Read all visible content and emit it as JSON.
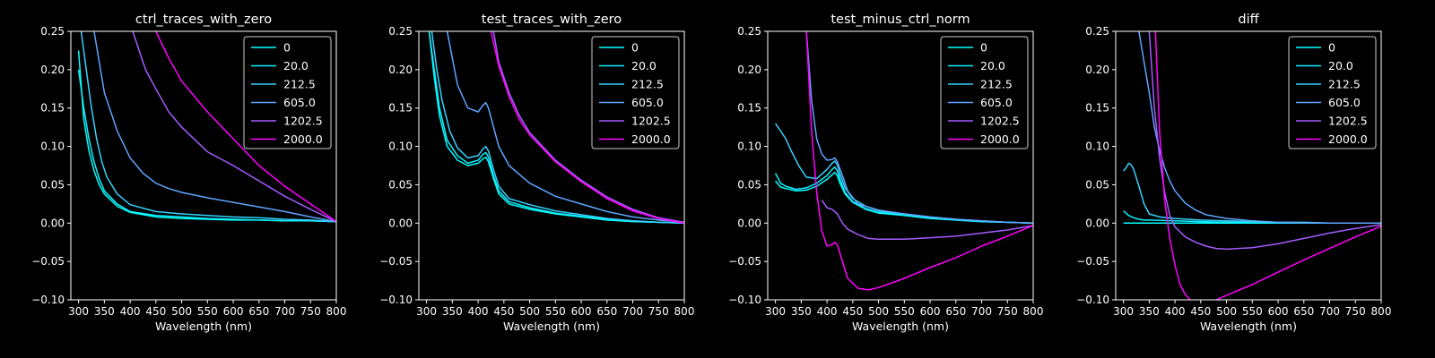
{
  "colors": {
    "background": "#000000",
    "axes": "#ffffff",
    "text": "#ffffff"
  },
  "legend_entries": [
    {
      "label": "0",
      "color": "#00ffff"
    },
    {
      "label": "20.0",
      "color": "#0df2ff"
    },
    {
      "label": "212.5",
      "color": "#37d0ff"
    },
    {
      "label": "605.0",
      "color": "#5ea4ff"
    },
    {
      "label": "1202.5",
      "color": "#a45cff"
    },
    {
      "label": "2000.0",
      "color": "#ff00ff"
    }
  ],
  "chart_data": [
    {
      "type": "line",
      "title": "ctrl_traces_with_zero",
      "xlabel": "Wavelength (nm)",
      "ylabel": "",
      "xlim": [
        285,
        800
      ],
      "ylim": [
        -0.1,
        0.25
      ],
      "xticks": [
        "300",
        "350",
        "400",
        "450",
        "500",
        "550",
        "600",
        "650",
        "700",
        "750",
        "800"
      ],
      "yticks": [
        "−0.10",
        "−0.05",
        "0.00",
        "0.05",
        "0.10",
        "0.15",
        "0.20",
        "0.25"
      ],
      "legend_position": "upper right",
      "grid": false,
      "series": [
        {
          "name": "0",
          "x": [
            300,
            310,
            320,
            330,
            340,
            350,
            375,
            400,
            450,
            500,
            550,
            600,
            650,
            700,
            750,
            800
          ],
          "y": [
            0.225,
            0.135,
            0.095,
            0.068,
            0.05,
            0.038,
            0.022,
            0.014,
            0.008,
            0.006,
            0.005,
            0.004,
            0.004,
            0.003,
            0.003,
            0.002
          ]
        },
        {
          "name": "20.0",
          "x": [
            300,
            310,
            320,
            330,
            340,
            350,
            375,
            400,
            450,
            500,
            550,
            600,
            650,
            700,
            750,
            800
          ],
          "y": [
            0.2,
            0.15,
            0.11,
            0.08,
            0.058,
            0.042,
            0.025,
            0.015,
            0.01,
            0.008,
            0.006,
            0.005,
            0.004,
            0.003,
            0.003,
            0.002
          ]
        },
        {
          "name": "212.5",
          "x": [
            305,
            315,
            325,
            335,
            345,
            355,
            375,
            400,
            450,
            500,
            550,
            600,
            650,
            700,
            750,
            800
          ],
          "y": [
            0.25,
            0.2,
            0.15,
            0.11,
            0.08,
            0.06,
            0.038,
            0.024,
            0.015,
            0.012,
            0.01,
            0.008,
            0.007,
            0.005,
            0.004,
            0.002
          ]
        },
        {
          "name": "605.0",
          "x": [
            330,
            350,
            375,
            400,
            425,
            450,
            475,
            500,
            550,
            600,
            650,
            700,
            750,
            800
          ],
          "y": [
            0.25,
            0.17,
            0.12,
            0.085,
            0.065,
            0.052,
            0.045,
            0.04,
            0.033,
            0.027,
            0.021,
            0.015,
            0.008,
            0.002
          ]
        },
        {
          "name": "1202.5",
          "x": [
            405,
            430,
            450,
            475,
            500,
            550,
            600,
            650,
            700,
            750,
            800
          ],
          "y": [
            0.25,
            0.2,
            0.175,
            0.145,
            0.125,
            0.093,
            0.075,
            0.055,
            0.035,
            0.018,
            0.002
          ]
        },
        {
          "name": "2000.0",
          "x": [
            450,
            475,
            500,
            550,
            600,
            650,
            700,
            750,
            800
          ],
          "y": [
            0.25,
            0.215,
            0.185,
            0.145,
            0.11,
            0.075,
            0.048,
            0.025,
            0.002
          ]
        }
      ]
    },
    {
      "type": "line",
      "title": "test_traces_with_zero",
      "xlabel": "Wavelength (nm)",
      "ylabel": "",
      "xlim": [
        285,
        800
      ],
      "ylim": [
        -0.1,
        0.25
      ],
      "xticks": [
        "300",
        "350",
        "400",
        "450",
        "500",
        "550",
        "600",
        "650",
        "700",
        "750",
        "800"
      ],
      "yticks": [
        "−0.10",
        "−0.05",
        "0.00",
        "0.05",
        "0.10",
        "0.15",
        "0.20",
        "0.25"
      ],
      "legend_position": "upper right",
      "grid": false,
      "series": [
        {
          "name": "0",
          "x": [
            305,
            315,
            325,
            340,
            360,
            380,
            400,
            410,
            415,
            420,
            430,
            440,
            460,
            500,
            550,
            600,
            650,
            700,
            750,
            800
          ],
          "y": [
            0.25,
            0.19,
            0.14,
            0.1,
            0.082,
            0.075,
            0.078,
            0.084,
            0.086,
            0.08,
            0.058,
            0.038,
            0.025,
            0.018,
            0.012,
            0.008,
            0.004,
            0.002,
            0.001,
            0.0
          ]
        },
        {
          "name": "20.0",
          "x": [
            305,
            315,
            325,
            340,
            360,
            380,
            400,
            410,
            415,
            420,
            430,
            440,
            460,
            500,
            550,
            600,
            650,
            700,
            750,
            800
          ],
          "y": [
            0.25,
            0.2,
            0.15,
            0.108,
            0.088,
            0.078,
            0.082,
            0.09,
            0.092,
            0.086,
            0.062,
            0.042,
            0.028,
            0.02,
            0.013,
            0.009,
            0.005,
            0.003,
            0.001,
            0.0
          ]
        },
        {
          "name": "212.5",
          "x": [
            310,
            320,
            330,
            345,
            360,
            380,
            400,
            410,
            415,
            420,
            430,
            440,
            460,
            500,
            550,
            600,
            650,
            700,
            750,
            800
          ],
          "y": [
            0.25,
            0.2,
            0.16,
            0.12,
            0.098,
            0.085,
            0.088,
            0.097,
            0.1,
            0.094,
            0.07,
            0.048,
            0.032,
            0.024,
            0.016,
            0.011,
            0.006,
            0.003,
            0.001,
            0.0
          ]
        },
        {
          "name": "605.0",
          "x": [
            340,
            360,
            380,
            400,
            410,
            415,
            420,
            430,
            440,
            460,
            500,
            550,
            600,
            650,
            700,
            750,
            800
          ],
          "y": [
            0.25,
            0.18,
            0.15,
            0.145,
            0.154,
            0.157,
            0.15,
            0.125,
            0.1,
            0.075,
            0.052,
            0.035,
            0.025,
            0.015,
            0.008,
            0.004,
            0.001
          ]
        },
        {
          "name": "1202.5",
          "x": [
            430,
            440,
            460,
            480,
            500,
            550,
            600,
            650,
            700,
            750,
            800
          ],
          "y": [
            0.25,
            0.21,
            0.17,
            0.14,
            0.118,
            0.082,
            0.056,
            0.034,
            0.018,
            0.007,
            0.001
          ]
        },
        {
          "name": "2000.0",
          "x": [
            425,
            440,
            460,
            480,
            500,
            550,
            600,
            650,
            700,
            750,
            800
          ],
          "y": [
            0.25,
            0.205,
            0.165,
            0.135,
            0.115,
            0.08,
            0.054,
            0.032,
            0.016,
            0.006,
            0.0
          ]
        }
      ]
    },
    {
      "type": "line",
      "title": "test_minus_ctrl_norm",
      "xlabel": "Wavelength (nm)",
      "ylabel": "",
      "xlim": [
        285,
        800
      ],
      "ylim": [
        -0.1,
        0.25
      ],
      "xticks": [
        "300",
        "350",
        "400",
        "450",
        "500",
        "550",
        "600",
        "650",
        "700",
        "750",
        "800"
      ],
      "yticks": [
        "−0.10",
        "−0.05",
        "0.00",
        "0.05",
        "0.10",
        "0.15",
        "0.20",
        "0.25"
      ],
      "legend_position": "upper right",
      "grid": false,
      "series": [
        {
          "name": "0",
          "x": [
            300,
            310,
            320,
            340,
            360,
            380,
            400,
            410,
            415,
            420,
            425,
            435,
            450,
            475,
            500,
            550,
            600,
            650,
            700,
            750,
            800
          ],
          "y": [
            0.055,
            0.047,
            0.045,
            0.042,
            0.043,
            0.048,
            0.057,
            0.063,
            0.066,
            0.062,
            0.052,
            0.038,
            0.027,
            0.018,
            0.013,
            0.01,
            0.006,
            0.004,
            0.002,
            0.001,
            0.0
          ]
        },
        {
          "name": "20.0",
          "x": [
            300,
            310,
            320,
            340,
            360,
            380,
            400,
            410,
            415,
            420,
            425,
            435,
            450,
            475,
            500,
            550,
            600,
            650,
            700,
            750,
            800
          ],
          "y": [
            0.065,
            0.052,
            0.048,
            0.044,
            0.046,
            0.052,
            0.062,
            0.07,
            0.073,
            0.068,
            0.057,
            0.04,
            0.028,
            0.019,
            0.014,
            0.011,
            0.007,
            0.004,
            0.002,
            0.001,
            0.0
          ]
        },
        {
          "name": "212.5",
          "x": [
            300,
            310,
            320,
            330,
            345,
            360,
            380,
            400,
            410,
            415,
            420,
            425,
            435,
            450,
            475,
            500,
            550,
            600,
            650,
            700,
            750,
            800
          ],
          "y": [
            0.13,
            0.12,
            0.11,
            0.095,
            0.075,
            0.06,
            0.058,
            0.07,
            0.078,
            0.081,
            0.076,
            0.064,
            0.046,
            0.032,
            0.022,
            0.016,
            0.012,
            0.008,
            0.005,
            0.003,
            0.001,
            0.0
          ]
        },
        {
          "name": "605.0",
          "x": [
            360,
            370,
            380,
            390,
            400,
            410,
            415,
            420,
            430,
            440,
            460,
            500,
            550,
            600,
            650,
            700,
            750,
            800
          ],
          "y": [
            0.25,
            0.16,
            0.11,
            0.09,
            0.082,
            0.083,
            0.085,
            0.08,
            0.062,
            0.042,
            0.025,
            0.017,
            0.012,
            0.008,
            0.005,
            0.003,
            0.001,
            0.0
          ]
        },
        {
          "name": "1202.5",
          "x": [
            390,
            400,
            410,
            420,
            430,
            440,
            460,
            480,
            500,
            550,
            600,
            650,
            700,
            750,
            800
          ],
          "y": [
            0.03,
            0.02,
            0.018,
            0.012,
            0.0,
            -0.008,
            -0.015,
            -0.02,
            -0.021,
            -0.021,
            -0.019,
            -0.017,
            -0.013,
            -0.009,
            -0.003
          ]
        },
        {
          "name": "2000.0",
          "x": [
            360,
            370,
            380,
            390,
            400,
            410,
            415,
            420,
            430,
            440,
            460,
            480,
            500,
            550,
            600,
            650,
            700,
            750,
            800
          ],
          "y": [
            0.25,
            0.12,
            0.04,
            -0.01,
            -0.03,
            -0.028,
            -0.025,
            -0.028,
            -0.05,
            -0.072,
            -0.085,
            -0.087,
            -0.084,
            -0.072,
            -0.058,
            -0.045,
            -0.03,
            -0.017,
            -0.003
          ]
        }
      ]
    },
    {
      "type": "line",
      "title": "diff",
      "xlabel": "Wavelength (nm)",
      "ylabel": "",
      "xlim": [
        285,
        800
      ],
      "ylim": [
        -0.1,
        0.25
      ],
      "xticks": [
        "300",
        "350",
        "400",
        "450",
        "500",
        "550",
        "600",
        "650",
        "700",
        "750",
        "800"
      ],
      "yticks": [
        "−0.10",
        "−0.05",
        "0.00",
        "0.05",
        "0.10",
        "0.15",
        "0.20",
        "0.25"
      ],
      "legend_position": "upper right",
      "grid": false,
      "series": [
        {
          "name": "0",
          "x": [
            300,
            400,
            500,
            600,
            700,
            800
          ],
          "y": [
            0.0,
            0.0,
            0.0,
            0.0,
            0.0,
            0.0
          ]
        },
        {
          "name": "20.0",
          "x": [
            300,
            310,
            320,
            330,
            340,
            350,
            400,
            450,
            500,
            550,
            600,
            650,
            700,
            750,
            800
          ],
          "y": [
            0.016,
            0.01,
            0.007,
            0.005,
            0.004,
            0.004,
            0.003,
            0.002,
            0.001,
            0.001,
            0.0,
            0.0,
            0.0,
            0.0,
            0.0
          ]
        },
        {
          "name": "212.5",
          "x": [
            300,
            305,
            310,
            315,
            320,
            330,
            340,
            350,
            370,
            400,
            450,
            500,
            550,
            600,
            650,
            700,
            750,
            800
          ],
          "y": [
            0.068,
            0.072,
            0.078,
            0.076,
            0.07,
            0.048,
            0.025,
            0.012,
            0.008,
            0.006,
            0.004,
            0.003,
            0.002,
            0.001,
            0.001,
            0.0,
            0.0,
            0.0
          ]
        },
        {
          "name": "605.0",
          "x": [
            330,
            340,
            350,
            360,
            370,
            380,
            390,
            400,
            420,
            440,
            460,
            500,
            550,
            600,
            650,
            700,
            750,
            800
          ],
          "y": [
            0.25,
            0.21,
            0.17,
            0.125,
            0.095,
            0.072,
            0.055,
            0.042,
            0.026,
            0.017,
            0.011,
            0.006,
            0.003,
            0.001,
            0.0,
            0.0,
            0.0,
            0.0
          ]
        },
        {
          "name": "1202.5",
          "x": [
            350,
            360,
            370,
            380,
            390,
            400,
            420,
            440,
            460,
            480,
            500,
            550,
            600,
            650,
            700,
            750,
            800
          ],
          "y": [
            0.25,
            0.15,
            0.085,
            0.04,
            0.01,
            -0.005,
            -0.018,
            -0.025,
            -0.03,
            -0.033,
            -0.034,
            -0.032,
            -0.027,
            -0.02,
            -0.013,
            -0.007,
            -0.002
          ]
        },
        {
          "name": "2000.0",
          "x": [
            362,
            370,
            380,
            390,
            400,
            410,
            420,
            430,
            440,
            480,
            500,
            550,
            600,
            650,
            700,
            750,
            800
          ],
          "y": [
            0.25,
            0.12,
            0.03,
            -0.02,
            -0.055,
            -0.08,
            -0.093,
            -0.1,
            -0.11,
            -0.1,
            -0.094,
            -0.08,
            -0.064,
            -0.048,
            -0.033,
            -0.018,
            -0.004
          ]
        }
      ]
    }
  ]
}
